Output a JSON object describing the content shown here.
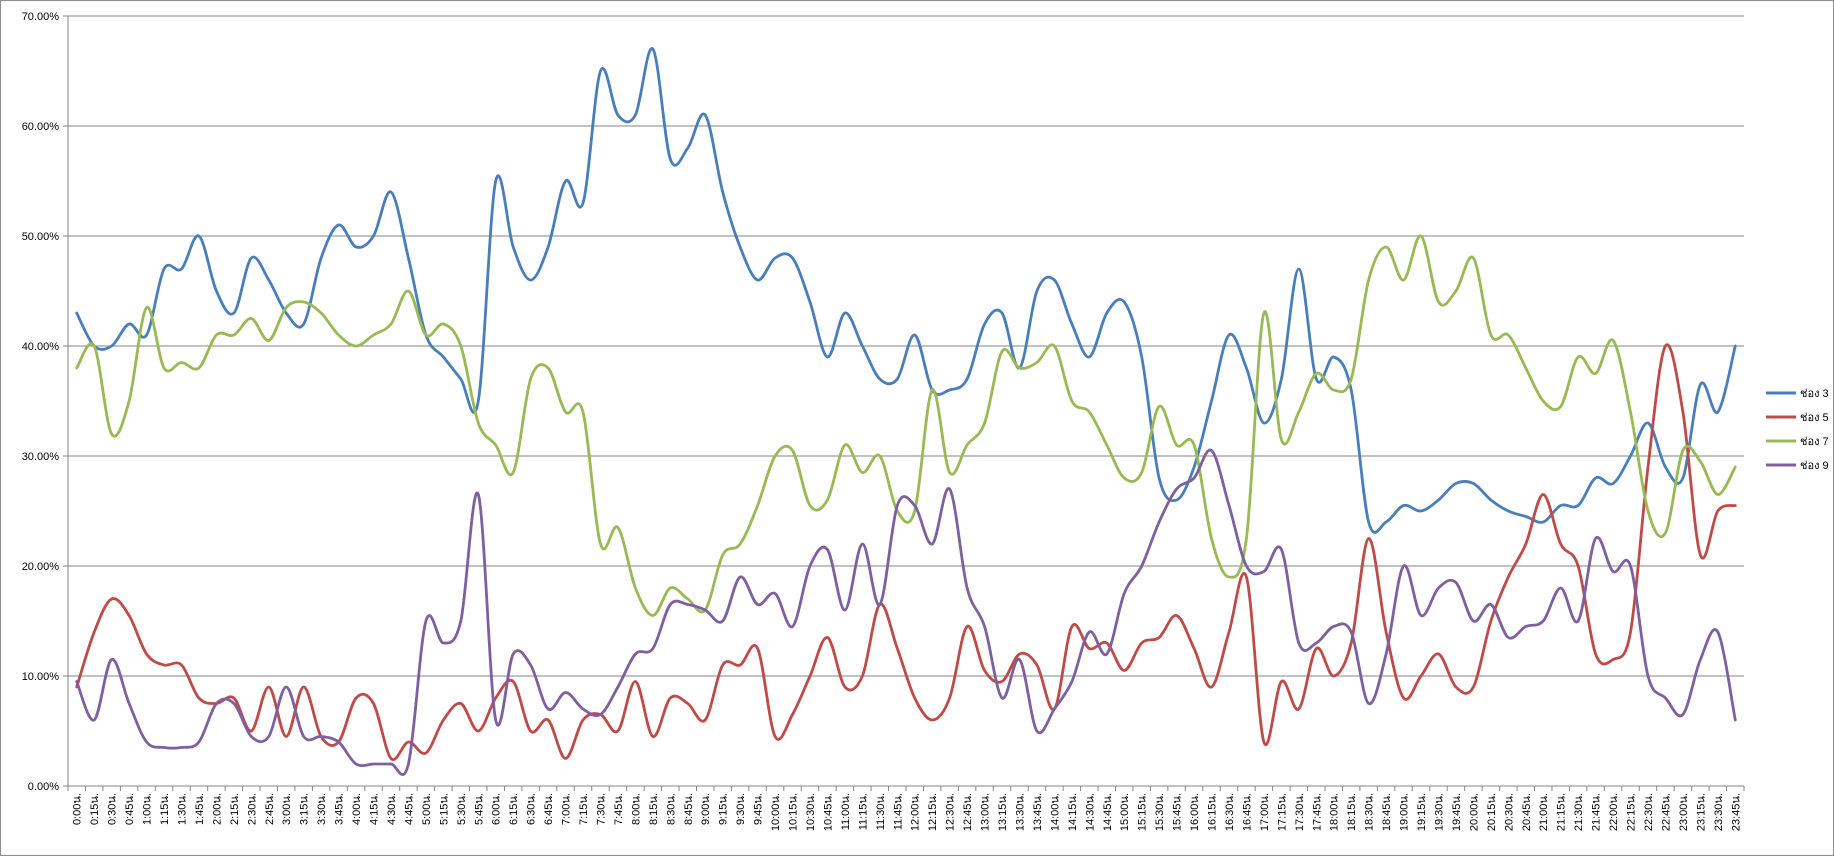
{
  "chart_data": {
    "type": "line",
    "title": "",
    "xlabel": "",
    "ylabel": "",
    "ylim": [
      0,
      0.7
    ],
    "y_ticks": [
      "0.00%",
      "10.00%",
      "20.00%",
      "30.00%",
      "40.00%",
      "50.00%",
      "60.00%",
      "70.00%"
    ],
    "grid": "horizontal",
    "legend_position": "right",
    "categories": [
      "0:00น.",
      "0:15น.",
      "0:30น.",
      "0:45น.",
      "1:00น.",
      "1:15น.",
      "1:30น.",
      "1:45น.",
      "2:00น.",
      "2:15น.",
      "2:30น.",
      "2:45น.",
      "3:00น.",
      "3:15น.",
      "3:30น.",
      "3:45น.",
      "4:00น.",
      "4:15น.",
      "4:30น.",
      "4:45น.",
      "5:00น.",
      "5:15น.",
      "5:30น.",
      "5:45น.",
      "6:00น.",
      "6:15น.",
      "6:30น.",
      "6:45น.",
      "7:00น.",
      "7:15น.",
      "7:30น.",
      "7:45น.",
      "8:00น.",
      "8:15น.",
      "8:30น.",
      "8:45น.",
      "9:00น.",
      "9:15น.",
      "9:30น.",
      "9:45น.",
      "10:00น.",
      "10:15น.",
      "10:30น.",
      "10:45น.",
      "11:00น.",
      "11:15น.",
      "11:30น.",
      "11:45น.",
      "12:00น.",
      "12:15น.",
      "12:30น.",
      "12:45น.",
      "13:00น.",
      "13:15น.",
      "13:30น.",
      "13:45น.",
      "14:00น.",
      "14:15น.",
      "14:30น.",
      "14:45น.",
      "15:00น.",
      "15:15น.",
      "15:30น.",
      "15:45น.",
      "16:00น.",
      "16:15น.",
      "16:30น.",
      "16:45น.",
      "17:00น.",
      "17:15น.",
      "17:30น.",
      "17:45น.",
      "18:00น.",
      "18:15น.",
      "18:30น.",
      "18:45น.",
      "19:00น.",
      "19:15น.",
      "19:30น.",
      "19:45น.",
      "20:00น.",
      "20:15น.",
      "20:30น.",
      "20:45น.",
      "21:00น.",
      "21:15น.",
      "21:30น.",
      "21:45น.",
      "22:00น.",
      "22:15น.",
      "22:30น.",
      "22:45น.",
      "23:00น.",
      "23:15น.",
      "23:30น.",
      "23:45น."
    ],
    "series": [
      {
        "name": "ช่อง 3",
        "color": "#4a7ebb",
        "values": [
          0.43,
          0.4,
          0.4,
          0.42,
          0.41,
          0.47,
          0.47,
          0.5,
          0.45,
          0.43,
          0.48,
          0.46,
          0.43,
          0.42,
          0.48,
          0.51,
          0.49,
          0.5,
          0.54,
          0.48,
          0.41,
          0.39,
          0.37,
          0.35,
          0.55,
          0.49,
          0.46,
          0.49,
          0.55,
          0.53,
          0.65,
          0.61,
          0.61,
          0.67,
          0.57,
          0.58,
          0.61,
          0.54,
          0.49,
          0.46,
          0.48,
          0.48,
          0.44,
          0.39,
          0.43,
          0.4,
          0.37,
          0.37,
          0.41,
          0.36,
          0.36,
          0.37,
          0.42,
          0.43,
          0.38,
          0.45,
          0.46,
          0.42,
          0.39,
          0.43,
          0.44,
          0.39,
          0.28,
          0.26,
          0.29,
          0.35,
          0.41,
          0.38,
          0.33,
          0.37,
          0.47,
          0.37,
          0.39,
          0.36,
          0.24,
          0.24,
          0.255,
          0.25,
          0.26,
          0.275,
          0.275,
          0.26,
          0.25,
          0.245,
          0.24,
          0.255,
          0.255,
          0.28,
          0.275,
          0.3,
          0.33,
          0.29,
          0.28,
          0.365,
          0.34,
          0.4
        ]
      },
      {
        "name": "ช่อง 5",
        "color": "#be4b48",
        "values": [
          0.09,
          0.14,
          0.17,
          0.155,
          0.12,
          0.11,
          0.11,
          0.08,
          0.075,
          0.08,
          0.05,
          0.09,
          0.045,
          0.09,
          0.045,
          0.04,
          0.08,
          0.075,
          0.025,
          0.04,
          0.03,
          0.06,
          0.075,
          0.05,
          0.08,
          0.095,
          0.05,
          0.06,
          0.025,
          0.06,
          0.065,
          0.05,
          0.095,
          0.045,
          0.08,
          0.075,
          0.06,
          0.11,
          0.11,
          0.125,
          0.045,
          0.065,
          0.1,
          0.135,
          0.09,
          0.1,
          0.165,
          0.125,
          0.08,
          0.06,
          0.08,
          0.145,
          0.105,
          0.095,
          0.12,
          0.11,
          0.07,
          0.145,
          0.125,
          0.13,
          0.105,
          0.13,
          0.135,
          0.155,
          0.125,
          0.09,
          0.14,
          0.19,
          0.04,
          0.095,
          0.07,
          0.125,
          0.1,
          0.13,
          0.225,
          0.14,
          0.08,
          0.1,
          0.12,
          0.09,
          0.09,
          0.15,
          0.19,
          0.22,
          0.265,
          0.22,
          0.2,
          0.12,
          0.115,
          0.14,
          0.29,
          0.4,
          0.34,
          0.21,
          0.25,
          0.255
        ]
      },
      {
        "name": "ช่อง 7",
        "color": "#98b954",
        "values": [
          0.38,
          0.4,
          0.32,
          0.35,
          0.435,
          0.38,
          0.385,
          0.38,
          0.41,
          0.41,
          0.425,
          0.405,
          0.435,
          0.44,
          0.43,
          0.41,
          0.4,
          0.41,
          0.42,
          0.45,
          0.41,
          0.42,
          0.4,
          0.33,
          0.31,
          0.285,
          0.37,
          0.38,
          0.34,
          0.34,
          0.22,
          0.235,
          0.18,
          0.155,
          0.18,
          0.17,
          0.16,
          0.21,
          0.22,
          0.255,
          0.3,
          0.305,
          0.255,
          0.26,
          0.31,
          0.285,
          0.3,
          0.25,
          0.25,
          0.36,
          0.285,
          0.31,
          0.33,
          0.395,
          0.38,
          0.385,
          0.4,
          0.35,
          0.34,
          0.31,
          0.28,
          0.285,
          0.345,
          0.31,
          0.31,
          0.225,
          0.19,
          0.225,
          0.43,
          0.315,
          0.34,
          0.375,
          0.36,
          0.37,
          0.46,
          0.49,
          0.46,
          0.5,
          0.44,
          0.45,
          0.48,
          0.41,
          0.41,
          0.38,
          0.35,
          0.345,
          0.39,
          0.375,
          0.405,
          0.34,
          0.25,
          0.23,
          0.305,
          0.295,
          0.265,
          0.29
        ]
      },
      {
        "name": "ช่อง 9",
        "color": "#7d60a0",
        "values": [
          0.095,
          0.06,
          0.115,
          0.075,
          0.04,
          0.035,
          0.035,
          0.04,
          0.075,
          0.075,
          0.045,
          0.045,
          0.09,
          0.045,
          0.045,
          0.04,
          0.02,
          0.02,
          0.02,
          0.02,
          0.15,
          0.13,
          0.15,
          0.265,
          0.06,
          0.12,
          0.11,
          0.07,
          0.085,
          0.07,
          0.065,
          0.09,
          0.12,
          0.125,
          0.165,
          0.165,
          0.16,
          0.15,
          0.19,
          0.165,
          0.175,
          0.145,
          0.2,
          0.215,
          0.16,
          0.22,
          0.165,
          0.255,
          0.255,
          0.22,
          0.27,
          0.18,
          0.145,
          0.08,
          0.115,
          0.05,
          0.07,
          0.095,
          0.14,
          0.12,
          0.175,
          0.2,
          0.24,
          0.27,
          0.28,
          0.305,
          0.255,
          0.2,
          0.195,
          0.215,
          0.13,
          0.13,
          0.145,
          0.14,
          0.075,
          0.12,
          0.2,
          0.155,
          0.18,
          0.185,
          0.15,
          0.165,
          0.135,
          0.145,
          0.15,
          0.18,
          0.15,
          0.225,
          0.195,
          0.2,
          0.1,
          0.08,
          0.065,
          0.115,
          0.14,
          0.06
        ]
      }
    ]
  }
}
